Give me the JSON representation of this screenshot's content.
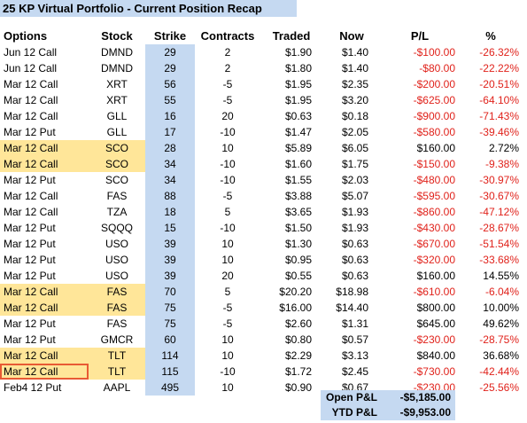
{
  "title": "25 KP Virtual Portfolio - Current Position Recap",
  "headers": {
    "options": "Options",
    "stock": "Stock",
    "strike": "Strike",
    "contracts": "Contracts",
    "traded": "Traded",
    "now": "Now",
    "pl": "P/L",
    "pct": "%"
  },
  "rows": [
    {
      "option": "Jun 12 Call",
      "stock": "DMND",
      "strike": "29",
      "contracts": "2",
      "traded": "$1.90",
      "now": "$1.40",
      "pl": "-$100.00",
      "pct": "-26.32%"
    },
    {
      "option": "Jun 12 Call",
      "stock": "DMND",
      "strike": "29",
      "contracts": "2",
      "traded": "$1.80",
      "now": "$1.40",
      "pl": "-$80.00",
      "pct": "-22.22%"
    },
    {
      "option": "Mar 12 Call",
      "stock": "XRT",
      "strike": "56",
      "contracts": "-5",
      "traded": "$1.95",
      "now": "$2.35",
      "pl": "-$200.00",
      "pct": "-20.51%"
    },
    {
      "option": "Mar 12 Call",
      "stock": "XRT",
      "strike": "55",
      "contracts": "-5",
      "traded": "$1.95",
      "now": "$3.20",
      "pl": "-$625.00",
      "pct": "-64.10%"
    },
    {
      "option": "Mar 12 Call",
      "stock": "GLL",
      "strike": "16",
      "contracts": "20",
      "traded": "$0.63",
      "now": "$0.18",
      "pl": "-$900.00",
      "pct": "-71.43%"
    },
    {
      "option": "Mar 12 Put",
      "stock": "GLL",
      "strike": "17",
      "contracts": "-10",
      "traded": "$1.47",
      "now": "$2.05",
      "pl": "-$580.00",
      "pct": "-39.46%"
    },
    {
      "option": "Mar 12 Call",
      "stock": "SCO",
      "strike": "28",
      "contracts": "10",
      "traded": "$5.89",
      "now": "$6.05",
      "pl": "$160.00",
      "pct": "2.72%"
    },
    {
      "option": "Mar 12 Call",
      "stock": "SCO",
      "strike": "34",
      "contracts": "-10",
      "traded": "$1.60",
      "now": "$1.75",
      "pl": "-$150.00",
      "pct": "-9.38%"
    },
    {
      "option": "Mar 12 Put",
      "stock": "SCO",
      "strike": "34",
      "contracts": "-10",
      "traded": "$1.55",
      "now": "$2.03",
      "pl": "-$480.00",
      "pct": "-30.97%"
    },
    {
      "option": "Mar 12 Call",
      "stock": "FAS",
      "strike": "88",
      "contracts": "-5",
      "traded": "$3.88",
      "now": "$5.07",
      "pl": "-$595.00",
      "pct": "-30.67%"
    },
    {
      "option": "Mar 12 Call",
      "stock": "TZA",
      "strike": "18",
      "contracts": "5",
      "traded": "$3.65",
      "now": "$1.93",
      "pl": "-$860.00",
      "pct": "-47.12%"
    },
    {
      "option": "Mar 12 Put",
      "stock": "SQQQ",
      "strike": "15",
      "contracts": "-10",
      "traded": "$1.50",
      "now": "$1.93",
      "pl": "-$430.00",
      "pct": "-28.67%"
    },
    {
      "option": "Mar 12 Put",
      "stock": "USO",
      "strike": "39",
      "contracts": "10",
      "traded": "$1.30",
      "now": "$0.63",
      "pl": "-$670.00",
      "pct": "-51.54%"
    },
    {
      "option": "Mar 12 Put",
      "stock": "USO",
      "strike": "39",
      "contracts": "10",
      "traded": "$0.95",
      "now": "$0.63",
      "pl": "-$320.00",
      "pct": "-33.68%"
    },
    {
      "option": "Mar 12 Put",
      "stock": "USO",
      "strike": "39",
      "contracts": "20",
      "traded": "$0.55",
      "now": "$0.63",
      "pl": "$160.00",
      "pct": "14.55%"
    },
    {
      "option": "Mar 12 Call",
      "stock": "FAS",
      "strike": "70",
      "contracts": "5",
      "traded": "$20.20",
      "now": "$18.98",
      "pl": "-$610.00",
      "pct": "-6.04%"
    },
    {
      "option": "Mar 12 Call",
      "stock": "FAS",
      "strike": "75",
      "contracts": "-5",
      "traded": "$16.00",
      "now": "$14.40",
      "pl": "$800.00",
      "pct": "10.00%"
    },
    {
      "option": "Mar 12 Put",
      "stock": "FAS",
      "strike": "75",
      "contracts": "-5",
      "traded": "$2.60",
      "now": "$1.31",
      "pl": "$645.00",
      "pct": "49.62%"
    },
    {
      "option": "Mar 12 Put",
      "stock": "GMCR",
      "strike": "60",
      "contracts": "10",
      "traded": "$0.80",
      "now": "$0.57",
      "pl": "-$230.00",
      "pct": "-28.75%"
    },
    {
      "option": "Mar 12 Call",
      "stock": "TLT",
      "strike": "114",
      "contracts": "10",
      "traded": "$2.29",
      "now": "$3.13",
      "pl": "$840.00",
      "pct": "36.68%"
    },
    {
      "option": "Mar 12 Call",
      "stock": "TLT",
      "strike": "115",
      "contracts": "-10",
      "traded": "$1.72",
      "now": "$2.45",
      "pl": "-$730.00",
      "pct": "-42.44%"
    },
    {
      "option": "Feb4 12 Put",
      "stock": "AAPL",
      "strike": "495",
      "contracts": "10",
      "traded": "$0.90",
      "now": "$0.67",
      "pl": "-$230.00",
      "pct": "-25.56%"
    }
  ],
  "summary": {
    "open_label": "Open P&L",
    "open_value": "-$5,185.00",
    "ytd_label": "YTD P&L",
    "ytd_value": "-$9,953.00"
  },
  "colors": {
    "header_fill": "#c5d9f1",
    "highlight_fill": "#ffe699",
    "negative_text": "#e0221b",
    "selection_border": "#e85a34"
  }
}
